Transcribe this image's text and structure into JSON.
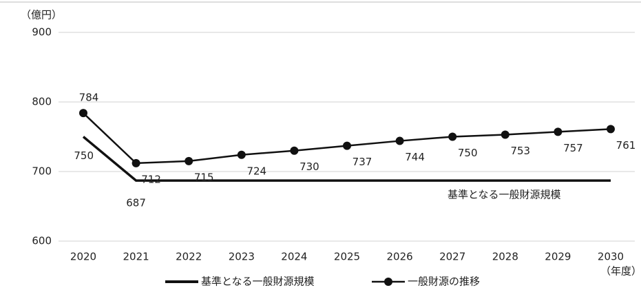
{
  "chart_data": {
    "type": "line",
    "y_label": "（億円）",
    "x_label": "（年度）",
    "categories": [
      "2020",
      "2021",
      "2022",
      "2023",
      "2024",
      "2025",
      "2026",
      "2027",
      "2028",
      "2029",
      "2030"
    ],
    "series": [
      {
        "name": "基準となる一般財源規模",
        "color": "#111111",
        "marker": false,
        "values": [
          750,
          687,
          687,
          687,
          687,
          687,
          687,
          687,
          687,
          687,
          687
        ],
        "value_labels": [
          "750",
          "687",
          null,
          null,
          null,
          null,
          null,
          null,
          null,
          null,
          null
        ]
      },
      {
        "name": "一般財源の推移",
        "color": "#111111",
        "marker": true,
        "values": [
          784,
          712,
          715,
          724,
          730,
          737,
          744,
          750,
          753,
          757,
          761
        ]
      }
    ],
    "annotation": "基準となる一般財源規模",
    "ylim": [
      600,
      900
    ],
    "yticks": [
      600,
      700,
      800,
      900
    ],
    "grid": true
  }
}
